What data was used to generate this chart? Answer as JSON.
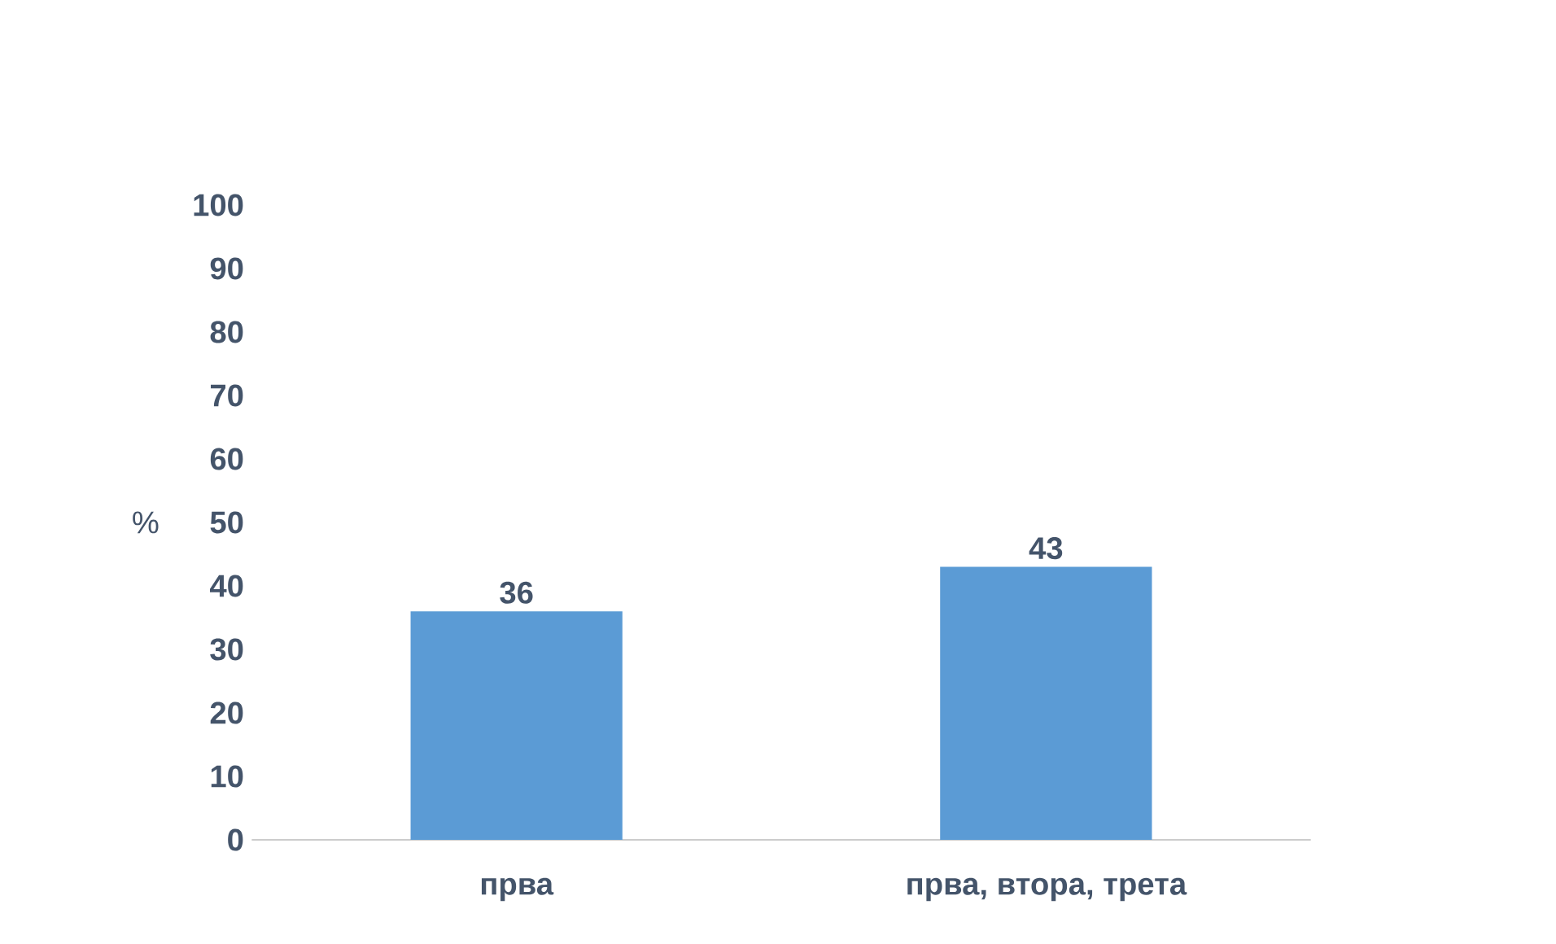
{
  "chart_data": {
    "type": "bar",
    "ylabel": "%",
    "categories": [
      "прва",
      "прва, втора, трета"
    ],
    "values": [
      36,
      43
    ],
    "color": "#5b9bd5",
    "ylim": [
      0,
      100
    ],
    "yticks": [
      0,
      10,
      20,
      30,
      40,
      50,
      60,
      70,
      80,
      90,
      100
    ],
    "data_labels": true
  }
}
